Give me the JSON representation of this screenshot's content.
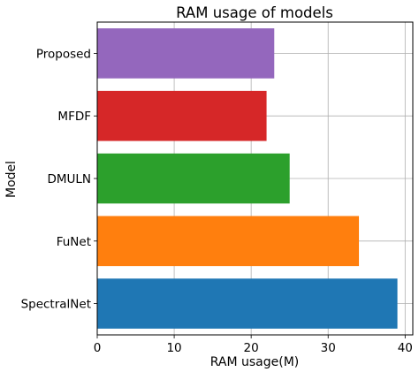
{
  "chart_data": {
    "type": "bar",
    "orientation": "horizontal",
    "title": "RAM usage of models",
    "xlabel": "RAM usage(M)",
    "ylabel": "Model",
    "categories": [
      "SpectralNet",
      "FuNet",
      "DMULN",
      "MFDF",
      "Proposed"
    ],
    "values": [
      39,
      34,
      25,
      22,
      23
    ],
    "colors": [
      "#1f77b4",
      "#ff7f0e",
      "#2ca02c",
      "#d62728",
      "#9467bd"
    ],
    "xlim": [
      0,
      41
    ],
    "xticks": [
      "0",
      "10",
      "20",
      "30",
      "40"
    ],
    "grid": true
  }
}
